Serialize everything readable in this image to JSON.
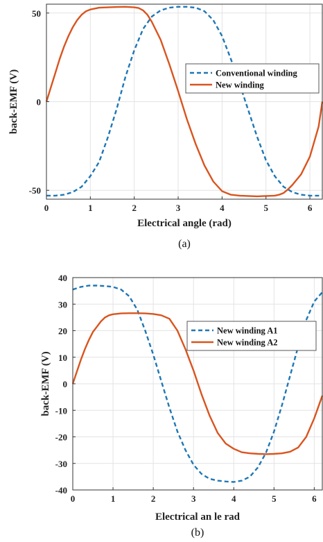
{
  "chart_data": [
    {
      "type": "line",
      "panel": "(a)",
      "xlabel": "Electrical angle (rad)",
      "ylabel": "back-EMF (V)",
      "xlim": [
        0,
        6.283
      ],
      "ylim": [
        -55,
        55
      ],
      "xticks": [
        0,
        1,
        2,
        3,
        4,
        5,
        6
      ],
      "yticks": [
        -50,
        0,
        50
      ],
      "grid": true,
      "legend_position": "right, upper-middle",
      "series": [
        {
          "name": "Conventional winding",
          "style": "dashed",
          "color": "#1f77b4",
          "x": [
            0,
            0.2,
            0.4,
            0.6,
            0.8,
            1.0,
            1.2,
            1.4,
            1.6,
            1.8,
            2.0,
            2.2,
            2.4,
            2.6,
            2.8,
            3.0,
            3.2,
            3.4,
            3.6,
            3.8,
            4.0,
            4.2,
            4.4,
            4.6,
            4.8,
            5.0,
            5.2,
            5.4,
            5.6,
            5.8,
            6.0,
            6.283
          ],
          "y": [
            -53,
            -53,
            -52.5,
            -51,
            -48,
            -42,
            -34,
            -20,
            -4,
            14,
            29,
            41,
            48,
            51.5,
            53,
            53.5,
            53.5,
            53,
            51,
            46,
            37,
            24,
            10,
            -5,
            -20,
            -33,
            -42,
            -48,
            -51,
            -52.5,
            -53,
            -53
          ]
        },
        {
          "name": "New winding",
          "style": "solid",
          "color": "#d9541e",
          "x": [
            0,
            0.1,
            0.2,
            0.3,
            0.4,
            0.5,
            0.6,
            0.7,
            0.8,
            0.9,
            1.0,
            1.2,
            1.4,
            1.6,
            1.8,
            2.0,
            2.1,
            2.2,
            2.3,
            2.4,
            2.6,
            2.8,
            3.0,
            3.2,
            3.4,
            3.6,
            3.8,
            4.0,
            4.2,
            4.4,
            4.6,
            4.8,
            5.0,
            5.2,
            5.3,
            5.4,
            5.5,
            5.6,
            5.8,
            6.0,
            6.2,
            6.283
          ],
          "y": [
            0,
            8,
            16,
            24,
            31,
            37,
            42,
            46,
            49,
            51,
            52,
            53,
            53.2,
            53.4,
            53.5,
            53.2,
            52.8,
            51.5,
            49,
            45,
            35,
            21,
            6,
            -10,
            -24,
            -36,
            -45,
            -50.5,
            -52.5,
            -53,
            -53.2,
            -53.4,
            -53.2,
            -53,
            -52.5,
            -51.5,
            -49.5,
            -47,
            -41,
            -31,
            -14,
            0
          ]
        }
      ]
    },
    {
      "type": "line",
      "panel": "(b)",
      "xlabel": "Electrical an le rad",
      "ylabel": "back-EMF (V)",
      "xlim": [
        0,
        6.2
      ],
      "ylim": [
        -40,
        40
      ],
      "xticks": [
        0,
        1,
        2,
        3,
        4,
        5,
        6
      ],
      "yticks": [
        -40,
        -30,
        -20,
        -10,
        0,
        10,
        20,
        30,
        40
      ],
      "grid": true,
      "legend_position": "top-right",
      "series": [
        {
          "name": "New winding A1",
          "style": "dashed",
          "color": "#1f77b4",
          "x": [
            0,
            0.2,
            0.4,
            0.6,
            0.8,
            1.0,
            1.2,
            1.4,
            1.6,
            1.8,
            2.0,
            2.2,
            2.4,
            2.6,
            2.8,
            3.0,
            3.2,
            3.4,
            3.6,
            3.8,
            4.0,
            4.2,
            4.4,
            4.6,
            4.8,
            5.0,
            5.2,
            5.4,
            5.6,
            5.8,
            6.0,
            6.2
          ],
          "y": [
            35.5,
            36.5,
            37,
            37,
            36.8,
            36.5,
            35.5,
            33,
            28,
            20,
            11,
            1,
            -9,
            -18,
            -25,
            -30.5,
            -34,
            -35.8,
            -36.5,
            -36.8,
            -37,
            -36.5,
            -35,
            -31.5,
            -26,
            -18,
            -8,
            3,
            14,
            24,
            31,
            34.5
          ]
        },
        {
          "name": "New winding A2",
          "style": "solid",
          "color": "#d9541e",
          "x": [
            0,
            0.1,
            0.2,
            0.3,
            0.4,
            0.5,
            0.6,
            0.7,
            0.8,
            0.9,
            1.0,
            1.2,
            1.4,
            1.6,
            1.8,
            2.0,
            2.2,
            2.4,
            2.6,
            2.8,
            3.0,
            3.2,
            3.4,
            3.6,
            3.8,
            4.0,
            4.2,
            4.4,
            4.6,
            4.8,
            5.0,
            5.2,
            5.4,
            5.6,
            5.8,
            6.0,
            6.2
          ],
          "y": [
            0,
            4.5,
            9,
            13,
            16.5,
            19.5,
            21.5,
            23.5,
            25,
            25.8,
            26.2,
            26.5,
            26.6,
            26.6,
            26.5,
            26.3,
            25.8,
            24.5,
            20,
            13,
            5,
            -4,
            -12,
            -18.5,
            -22.5,
            -24.5,
            -25.8,
            -26.2,
            -26.4,
            -26.5,
            -26.4,
            -26.2,
            -25.6,
            -24,
            -20,
            -13,
            -4.5
          ]
        }
      ]
    }
  ],
  "captions": {
    "a": "(a)",
    "b": "(b)"
  }
}
